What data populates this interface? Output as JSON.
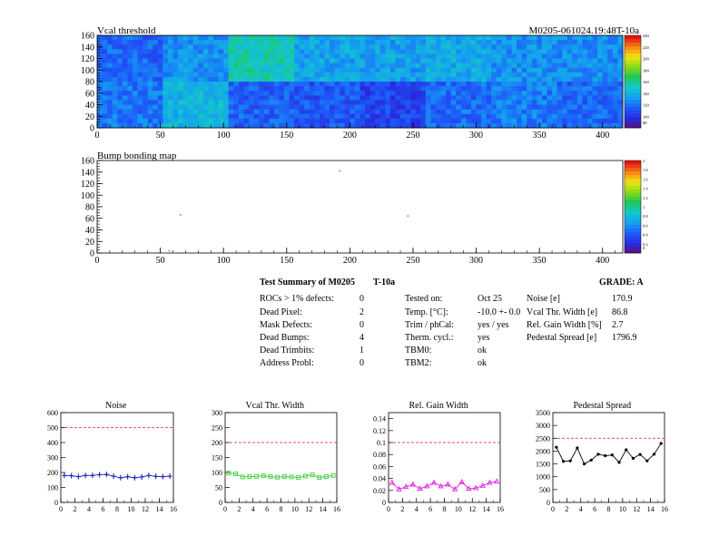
{
  "header": {
    "plot_title": "Vcal threshold",
    "module_id": "M0205-061024.19:48T-10a"
  },
  "chart_data": [
    {
      "type": "heatmap",
      "title": "Vcal threshold",
      "xlim": [
        0,
        416
      ],
      "ylim": [
        0,
        160
      ],
      "xticks": [
        "0",
        "50",
        "100",
        "150",
        "200",
        "250",
        "300",
        "350",
        "400"
      ],
      "yticks": [
        "0",
        "20",
        "40",
        "60",
        "80",
        "100",
        "120",
        "140",
        "160"
      ],
      "colorbar_ticks": [
        "80",
        "100",
        "120",
        "140",
        "160",
        "180",
        "200",
        "220",
        "240"
      ],
      "roc_grid": {
        "cols": 8,
        "rows": 2,
        "roc_width": 52,
        "roc_height": 80
      },
      "roc_mean_levels": [
        [
          0.22,
          0.3,
          0.46,
          0.34,
          0.33,
          0.35,
          0.3,
          0.29
        ],
        [
          0.25,
          0.38,
          0.21,
          0.19,
          0.15,
          0.23,
          0.26,
          0.22
        ]
      ],
      "roc_mean_levels_note_rows": "row 0 = top (y 80-160), row 1 = bottom (y 0-80)"
    },
    {
      "type": "heatmap",
      "title": "Bump bonding map",
      "xlim": [
        0,
        416
      ],
      "ylim": [
        0,
        160
      ],
      "xticks": [
        "0",
        "50",
        "100",
        "150",
        "200",
        "250",
        "300",
        "350",
        "400"
      ],
      "yticks": [
        "0",
        "20",
        "40",
        "60",
        "80",
        "100",
        "120",
        "140",
        "160"
      ],
      "colorbar_ticks": [
        "0",
        "0.2",
        "0.4",
        "0.6",
        "0.8",
        "1",
        "1.2",
        "1.4",
        "1.6",
        "1.8",
        "2"
      ],
      "points": [
        {
          "x": 66,
          "y": 66,
          "v": 1
        },
        {
          "x": 57,
          "y": 4,
          "v": 1
        },
        {
          "x": 246,
          "y": 64,
          "v": 1
        },
        {
          "x": 192,
          "y": 142,
          "v": 1
        }
      ]
    },
    {
      "type": "line",
      "title": "Noise",
      "x": [
        0,
        1,
        2,
        3,
        4,
        5,
        6,
        7,
        8,
        9,
        10,
        11,
        12,
        13,
        14,
        15
      ],
      "values": [
        180,
        178,
        172,
        180,
        180,
        185,
        187,
        175,
        165,
        172,
        165,
        170,
        180,
        174,
        172,
        175
      ],
      "xlim": [
        0,
        16
      ],
      "ylim": [
        0,
        600
      ],
      "xticks": [
        "0",
        "2",
        "4",
        "6",
        "8",
        "10",
        "12",
        "14",
        "16"
      ],
      "yticks": [
        "0",
        "100",
        "200",
        "300",
        "400",
        "500",
        "600"
      ],
      "limit": 500,
      "marker": "cross",
      "color": "#1f1fbf"
    },
    {
      "type": "line",
      "title": "Vcal Thr. Width",
      "x": [
        0,
        1,
        2,
        3,
        4,
        5,
        6,
        7,
        8,
        9,
        10,
        11,
        12,
        13,
        14,
        15
      ],
      "values": [
        98,
        95,
        85,
        86,
        87,
        89,
        86,
        84,
        86,
        85,
        83,
        88,
        92,
        83,
        86,
        90
      ],
      "xlim": [
        0,
        16
      ],
      "ylim": [
        0,
        300
      ],
      "xticks": [
        "0",
        "2",
        "4",
        "6",
        "8",
        "10",
        "12",
        "14",
        "16"
      ],
      "yticks": [
        "0",
        "50",
        "100",
        "150",
        "200",
        "250",
        "300"
      ],
      "limit": 200,
      "marker": "square",
      "color": "#3fcf3f"
    },
    {
      "type": "line",
      "title": "Rel. Gain Width",
      "x": [
        0,
        1,
        2,
        3,
        4,
        5,
        6,
        7,
        8,
        9,
        10,
        11,
        12,
        13,
        14,
        15
      ],
      "values": [
        0.033,
        0.022,
        0.026,
        0.03,
        0.023,
        0.027,
        0.033,
        0.027,
        0.03,
        0.022,
        0.034,
        0.023,
        0.024,
        0.028,
        0.033,
        0.035
      ],
      "xlim": [
        0,
        16
      ],
      "ylim": [
        0,
        0.15
      ],
      "xticks": [
        "0",
        "2",
        "4",
        "6",
        "8",
        "10",
        "12",
        "14",
        "16"
      ],
      "yticks": [
        "0",
        "0.02",
        "0.04",
        "0.06",
        "0.08",
        "0.1",
        "0.12",
        "0.14"
      ],
      "limit": 0.1,
      "marker": "triangle",
      "color": "#e01fe0"
    },
    {
      "type": "line",
      "title": "Pedestal Spread",
      "x": [
        0,
        1,
        2,
        3,
        4,
        5,
        6,
        7,
        8,
        9,
        10,
        11,
        12,
        13,
        14,
        15
      ],
      "values": [
        2150,
        1600,
        1620,
        2120,
        1500,
        1650,
        1880,
        1820,
        1850,
        1560,
        2050,
        1720,
        1870,
        1620,
        1880,
        2300
      ],
      "xlim": [
        0,
        16
      ],
      "ylim": [
        0,
        3500
      ],
      "xticks": [
        "0",
        "2",
        "4",
        "6",
        "8",
        "10",
        "12",
        "14",
        "16"
      ],
      "yticks": [
        "0",
        "500",
        "1000",
        "1500",
        "2000",
        "2500",
        "3000",
        "3500"
      ],
      "limit": 2500,
      "marker": "dot",
      "color": "#000000"
    }
  ],
  "summary": {
    "title": "Test Summary of M0205",
    "temp_tag": "T-10a",
    "grade": "GRADE:  A",
    "col1": [
      {
        "label": "ROCs > 1% defects:",
        "value": "0"
      },
      {
        "label": "Dead Pixel:",
        "value": "2"
      },
      {
        "label": "Mask Defects:",
        "value": "0"
      },
      {
        "label": "Dead Bumps:",
        "value": "4"
      },
      {
        "label": "Dead Trimbits:",
        "value": "1"
      },
      {
        "label": "Address Probl:",
        "value": "0"
      }
    ],
    "col2": [
      {
        "label": "Tested on:",
        "value": "Oct 25"
      },
      {
        "label": "Temp. [°C]:",
        "value": "-10.0 +- 0.0"
      },
      {
        "label": "Trim / phCal:",
        "value": "yes / yes"
      },
      {
        "label": "Therm. cycl.:",
        "value": "yes"
      },
      {
        "label": "TBM0:",
        "value": "ok"
      },
      {
        "label": "TBM2:",
        "value": "ok"
      }
    ],
    "col3": [
      {
        "label": "Noise [e]",
        "value": "170.9"
      },
      {
        "label": "Vcal Thr. Width [e]",
        "value": "86.8"
      },
      {
        "label": "Rel. Gain Width [%]",
        "value": "2.7"
      },
      {
        "label": "Pedestal Spread [e]",
        "value": "1796.9"
      }
    ]
  }
}
